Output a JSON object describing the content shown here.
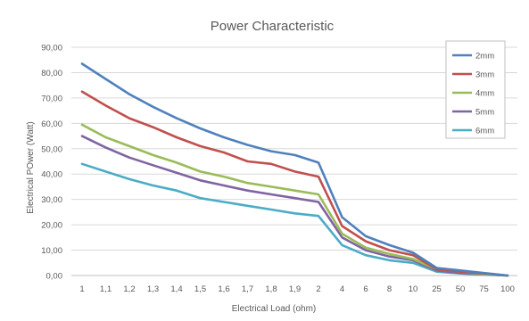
{
  "chart_data": {
    "type": "line",
    "title": "Power Characteristic",
    "xlabel": "Electrical Load (ohm)",
    "ylabel": "Electrical POwer (Watt)",
    "ylim": [
      0,
      90
    ],
    "yticks": [
      "0,00",
      "10,00",
      "20,00",
      "30,00",
      "40,00",
      "50,00",
      "60,00",
      "70,00",
      "80,00",
      "90,00"
    ],
    "categories": [
      "1",
      "1,1",
      "1,2",
      "1,3",
      "1,4",
      "1,5",
      "1,6",
      "1,7",
      "1,8",
      "1,9",
      "2",
      "4",
      "6",
      "8",
      "10",
      "25",
      "50",
      "75",
      "100"
    ],
    "grid": true,
    "legend_position": "top-right",
    "series": [
      {
        "name": "2mm",
        "color": "#4f81bd",
        "values": [
          83.5,
          77.5,
          71.5,
          66.5,
          62.0,
          58.0,
          54.5,
          51.5,
          49.0,
          47.5,
          44.5,
          23.0,
          15.5,
          12.0,
          9.0,
          3.0,
          2.0,
          1.0,
          0
        ]
      },
      {
        "name": "3mm",
        "color": "#c0504d",
        "values": [
          72.5,
          67.0,
          62.0,
          58.5,
          54.5,
          51.0,
          48.5,
          45.0,
          44.0,
          41.0,
          39.0,
          19.5,
          13.5,
          10.0,
          8.0,
          2.5,
          1.5,
          0.8,
          0
        ]
      },
      {
        "name": "4mm",
        "color": "#9bbb59",
        "values": [
          59.5,
          54.5,
          51.0,
          47.5,
          44.5,
          41.0,
          39.0,
          36.5,
          35.0,
          33.5,
          32.0,
          16.5,
          11.0,
          8.5,
          6.5,
          2.5,
          1.5,
          0.5,
          0
        ]
      },
      {
        "name": "5mm",
        "color": "#8064a2",
        "values": [
          55.0,
          50.5,
          46.5,
          43.5,
          40.5,
          37.5,
          35.5,
          33.5,
          32.0,
          30.5,
          29.0,
          15.0,
          10.0,
          7.5,
          6.0,
          2.0,
          1.0,
          0.5,
          0
        ]
      },
      {
        "name": "6mm",
        "color": "#4bacc6",
        "values": [
          44.0,
          41.0,
          38.0,
          35.5,
          33.5,
          30.5,
          29.0,
          27.5,
          26.0,
          24.5,
          23.5,
          12.0,
          8.0,
          6.0,
          5.0,
          1.5,
          0.8,
          0.3,
          0
        ]
      }
    ]
  }
}
